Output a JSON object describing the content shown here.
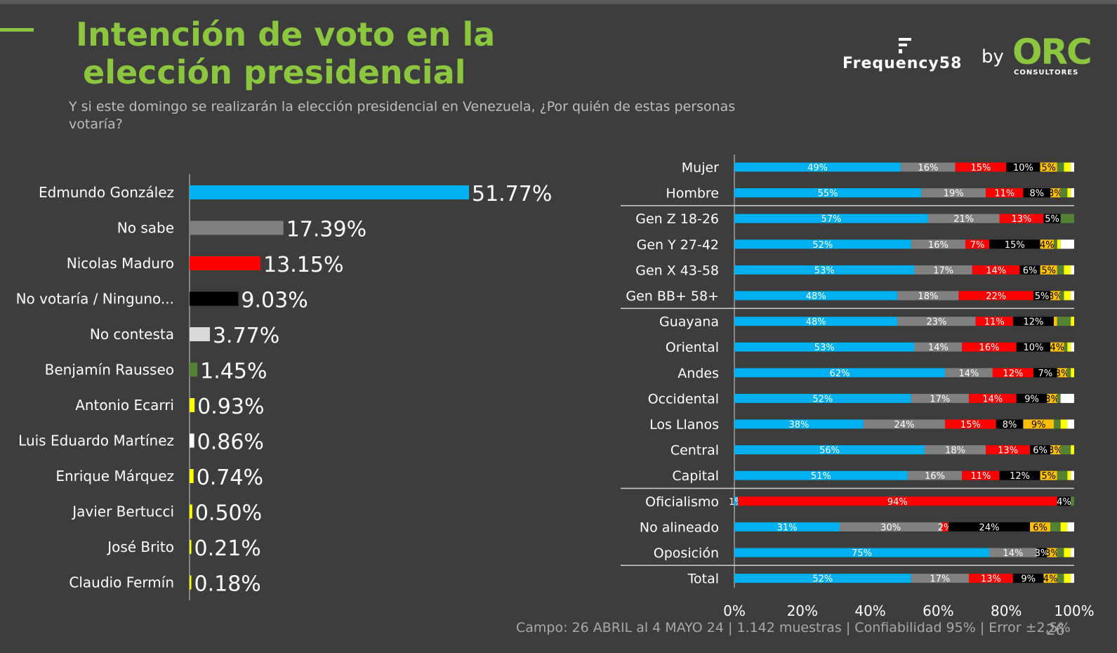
{
  "header": {
    "title_line1": "Intención de voto en la",
    "title_line2": "elección presidencial",
    "subtitle": "Y  si este domingo se realizarán la elección presidencial en Venezuela, ¿Por quién de estas personas votaría?",
    "brand_name": "Frequency58",
    "brand_by": "by",
    "brand_orc": "ORC",
    "brand_orc_sub": "CONSULTORES"
  },
  "footer": {
    "fieldwork": "Campo: 26 ABRIL al 4 MAYO 24 | 1.142 muestras | Confiabilidad 95% | Error ±2,5%",
    "page": "26"
  },
  "chart_data": [
    {
      "type": "bar",
      "orientation": "horizontal",
      "categories": [
        "Edmundo González",
        "No sabe",
        "Nicolas Maduro",
        "No votaría / Ninguno...",
        "No contesta",
        "Benjamín Rausseo",
        "Antonio Ecarri",
        "Luis Eduardo Martínez",
        "Enrique Márquez",
        "Javier Bertucci",
        "José Brito",
        "Claudio Fermín"
      ],
      "values": [
        51.77,
        17.39,
        13.15,
        9.03,
        3.77,
        1.45,
        0.93,
        0.86,
        0.74,
        0.5,
        0.21,
        0.18
      ],
      "labels": [
        "51.77%",
        "17.39%",
        "13.15%",
        "9.03%",
        "3.77%",
        "1.45%",
        "0.93%",
        "0.86%",
        "0.74%",
        "0.50%",
        "0.21%",
        "0.18%"
      ],
      "colors": [
        "#00b0f0",
        "#808080",
        "#ff0000",
        "#000000",
        "#d9d9d9",
        "#548235",
        "#ffff00",
        "#ffffff",
        "#ffff00",
        "#ffff00",
        "#ffff00",
        "#ffff00"
      ]
    },
    {
      "type": "bar",
      "orientation": "horizontal",
      "stacked": "100%",
      "xlim": [
        0,
        100
      ],
      "x_ticks": [
        "0%",
        "20%",
        "40%",
        "60%",
        "80%",
        "100%"
      ],
      "segment_colors": [
        "#00b0f0",
        "#808080",
        "#ff0000",
        "#000000",
        "#ffc000",
        "#548235",
        "#ffff00",
        "#ffffff"
      ],
      "rows": [
        {
          "label": "Mujer",
          "values": [
            49,
            16,
            15,
            10,
            5,
            2,
            2,
            1
          ],
          "labels": [
            "49%",
            "16%",
            "15%",
            "10%",
            "5%",
            "",
            "",
            ""
          ]
        },
        {
          "label": "Hombre",
          "values": [
            55,
            19,
            11,
            8,
            3,
            2,
            1,
            1
          ],
          "labels": [
            "55%",
            "19%",
            "11%",
            "8%",
            "3%",
            "",
            "",
            ""
          ]
        },
        {
          "label": "Gen Z 18-26",
          "values": [
            57,
            21,
            13,
            5,
            0,
            4,
            0,
            0
          ],
          "labels": [
            "57%",
            "21%",
            "13%",
            "5%",
            "",
            "",
            "",
            ""
          ]
        },
        {
          "label": "Gen Y 27-42",
          "values": [
            52,
            16,
            7,
            15,
            4,
            1,
            1,
            4
          ],
          "labels": [
            "52%",
            "16%",
            "7%",
            "15%",
            "4%",
            "",
            "",
            ""
          ]
        },
        {
          "label": "Gen X 43-58",
          "values": [
            53,
            17,
            14,
            6,
            5,
            2,
            2,
            1
          ],
          "labels": [
            "53%",
            "17%",
            "14%",
            "6%",
            "5%",
            "",
            "",
            ""
          ]
        },
        {
          "label": "Gen BB+ 58+",
          "values": [
            48,
            18,
            22,
            5,
            3,
            1,
            2,
            1
          ],
          "labels": [
            "48%",
            "18%",
            "22%",
            "5%",
            "3%",
            "",
            "",
            ""
          ]
        },
        {
          "label": "Guayana",
          "values": [
            48,
            23,
            11,
            12,
            1,
            4,
            1,
            0
          ],
          "labels": [
            "48%",
            "23%",
            "11%",
            "12%",
            "",
            "",
            "",
            ""
          ]
        },
        {
          "label": "Oriental",
          "values": [
            53,
            14,
            16,
            10,
            4,
            1,
            1,
            1
          ],
          "labels": [
            "53%",
            "14%",
            "16%",
            "10%",
            "4%",
            "",
            "",
            ""
          ]
        },
        {
          "label": "Andes",
          "values": [
            62,
            14,
            12,
            7,
            3,
            1,
            1,
            0
          ],
          "labels": [
            "62%",
            "14%",
            "12%",
            "7%",
            "3%",
            "",
            "",
            ""
          ]
        },
        {
          "label": "Occidental",
          "values": [
            52,
            17,
            14,
            9,
            3,
            1,
            0,
            4
          ],
          "labels": [
            "52%",
            "17%",
            "14%",
            "9%",
            "3%",
            "",
            "",
            ""
          ]
        },
        {
          "label": "Los Llanos",
          "values": [
            38,
            24,
            15,
            8,
            9,
            2,
            2,
            2
          ],
          "labels": [
            "38%",
            "24%",
            "15%",
            "8%",
            "9%",
            "",
            "",
            ""
          ]
        },
        {
          "label": "Central",
          "values": [
            56,
            18,
            13,
            6,
            3,
            3,
            1,
            0
          ],
          "labels": [
            "56%",
            "18%",
            "13%",
            "6%",
            "3%",
            "",
            "",
            ""
          ]
        },
        {
          "label": "Capital",
          "values": [
            51,
            16,
            11,
            12,
            5,
            3,
            1,
            1
          ],
          "labels": [
            "51%",
            "16%",
            "11%",
            "12%",
            "5%",
            "",
            "",
            ""
          ]
        },
        {
          "label": "Oficialismo",
          "values": [
            1,
            0,
            94,
            4,
            0,
            1,
            0,
            0
          ],
          "labels": [
            "1%",
            "",
            "94%",
            "4%",
            "",
            "",
            "",
            ""
          ]
        },
        {
          "label": "No alineado",
          "values": [
            31,
            30,
            2,
            24,
            6,
            3,
            2,
            2
          ],
          "labels": [
            "31%",
            "30%",
            "2%",
            "24%",
            "6%",
            "",
            "",
            ""
          ]
        },
        {
          "label": "Oposición",
          "values": [
            75,
            14,
            0,
            3,
            3,
            2,
            2,
            1
          ],
          "labels": [
            "75%",
            "14%",
            "",
            "3%",
            "3%",
            "",
            "",
            ""
          ]
        },
        {
          "label": "Total",
          "values": [
            52,
            17,
            13,
            9,
            4,
            2,
            2,
            1
          ],
          "labels": [
            "52%",
            "17%",
            "13%",
            "9%",
            "4%",
            "",
            "",
            ""
          ]
        }
      ],
      "group_breaks_after": [
        1,
        5,
        12,
        15
      ]
    }
  ]
}
